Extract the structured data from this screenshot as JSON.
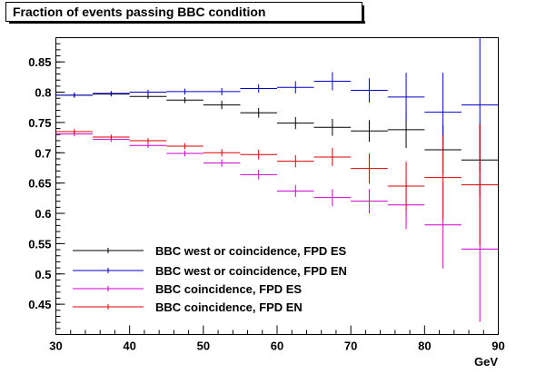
{
  "chart_data": {
    "type": "scatter",
    "title": "Fraction of events passing BBC condition",
    "xlabel": "GeV",
    "ylabel": "",
    "xlim": [
      30,
      90
    ],
    "ylim": [
      0.4,
      0.89
    ],
    "xticks": [
      30,
      40,
      50,
      60,
      70,
      80,
      90
    ],
    "xtick_labels": [
      "30",
      "40",
      "50",
      "60",
      "70",
      "80",
      "90"
    ],
    "yticks": [
      0.45,
      0.5,
      0.55,
      0.6,
      0.65,
      0.7,
      0.75,
      0.8,
      0.85
    ],
    "ytick_labels": [
      "0.45",
      "0.5",
      "0.55",
      "0.6",
      "0.65",
      "0.7",
      "0.75",
      "0.8",
      "0.85"
    ],
    "grid": false,
    "legend_position": "bottom-left",
    "x_bin_half_width": 2.5,
    "series": [
      {
        "name": "BBC west or coincidence, FPD ES",
        "color": "#000000",
        "x": [
          32.5,
          37.5,
          42.5,
          47.5,
          52.5,
          57.5,
          62.5,
          67.5,
          72.5,
          77.5,
          82.5,
          87.5
        ],
        "y": [
          0.795,
          0.797,
          0.793,
          0.787,
          0.779,
          0.766,
          0.749,
          0.742,
          0.736,
          0.738,
          0.705,
          0.688
        ],
        "yerr": [
          0.004,
          0.004,
          0.004,
          0.005,
          0.007,
          0.008,
          0.01,
          0.014,
          0.018,
          0.03,
          0.04,
          0.06
        ]
      },
      {
        "name": "BBC west or coincidence, FPD EN",
        "color": "#0000cc",
        "x": [
          32.5,
          37.5,
          42.5,
          47.5,
          52.5,
          57.5,
          62.5,
          67.5,
          72.5,
          77.5,
          82.5,
          87.5
        ],
        "y": [
          0.795,
          0.798,
          0.8,
          0.801,
          0.801,
          0.806,
          0.808,
          0.818,
          0.803,
          0.792,
          0.767,
          0.779
        ],
        "yerr": [
          0.004,
          0.004,
          0.004,
          0.005,
          0.006,
          0.007,
          0.01,
          0.015,
          0.02,
          0.04,
          0.065,
          0.11
        ]
      },
      {
        "name": "BBC coincidence, FPD ES",
        "color": "#cc00cc",
        "x": [
          32.5,
          37.5,
          42.5,
          47.5,
          52.5,
          57.5,
          62.5,
          67.5,
          72.5,
          77.5,
          82.5,
          87.5
        ],
        "y": [
          0.731,
          0.722,
          0.712,
          0.699,
          0.683,
          0.664,
          0.637,
          0.626,
          0.62,
          0.614,
          0.581,
          0.541
        ],
        "yerr": [
          0.004,
          0.004,
          0.004,
          0.005,
          0.006,
          0.008,
          0.01,
          0.014,
          0.02,
          0.04,
          0.072,
          0.12
        ]
      },
      {
        "name": "BBC coincidence, FPD EN",
        "color": "#dd0000",
        "x": [
          32.5,
          37.5,
          42.5,
          47.5,
          52.5,
          57.5,
          62.5,
          67.5,
          72.5,
          77.5,
          82.5,
          87.5
        ],
        "y": [
          0.735,
          0.726,
          0.72,
          0.711,
          0.7,
          0.697,
          0.686,
          0.693,
          0.674,
          0.645,
          0.659,
          0.647
        ],
        "yerr": [
          0.004,
          0.004,
          0.004,
          0.005,
          0.006,
          0.008,
          0.01,
          0.015,
          0.025,
          0.04,
          0.07,
          0.1
        ]
      }
    ]
  }
}
